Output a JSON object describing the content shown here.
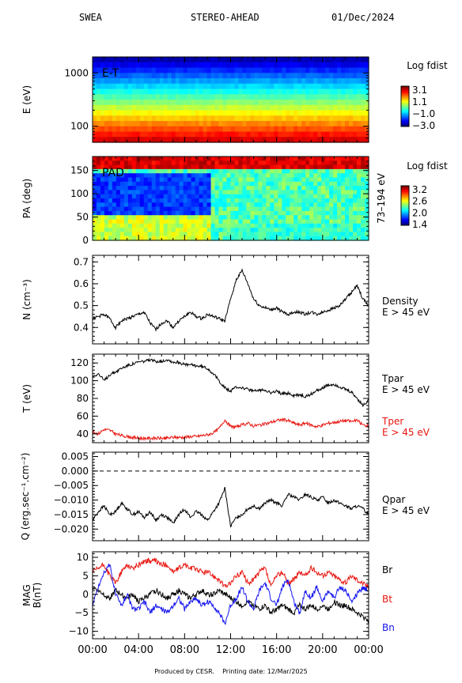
{
  "header": {
    "instrument": "SWEA",
    "spacecraft": "STEREO-AHEAD",
    "date": "01/Dec/2024"
  },
  "footer": {
    "produced_by": "Produced by CESR.",
    "printing_date": "Printing date: 12/Mar/2025"
  },
  "colors": {
    "red": "#e8150f",
    "blue": "#1515f0",
    "black": "#000000"
  },
  "x_axis": {
    "tick_labels": [
      "00:00",
      "04:00",
      "08:00",
      "12:00",
      "16:00",
      "20:00",
      "00:00"
    ],
    "range_hours": [
      0,
      24
    ]
  },
  "chart_data": [
    {
      "type": "heatmap",
      "id": "energy",
      "inner_label": "E-T",
      "ylabel": "E (eV)",
      "y_scale": "log",
      "ylim": [
        50,
        2000
      ],
      "ytick_labels": [
        "1000",
        "100"
      ],
      "ytick_values": [
        1000,
        100
      ],
      "colorbar": {
        "title": "Log fdist",
        "tick_labels": [
          "3.1",
          "1.1",
          "−1.0",
          "−3.0"
        ],
        "range": [
          -3.0,
          3.1
        ]
      }
    },
    {
      "type": "heatmap",
      "id": "pad",
      "inner_label": "PAD",
      "ylabel": "PA (deg)",
      "right_label": "73–194 eV",
      "ylim": [
        0,
        180
      ],
      "ytick_labels": [
        "150",
        "100",
        "50",
        "0"
      ],
      "ytick_values": [
        150,
        100,
        50,
        0
      ],
      "colorbar": {
        "title": "Log fdist",
        "tick_labels": [
          "3.2",
          "2.6",
          "2.0",
          "1.4"
        ],
        "range": [
          1.4,
          3.2
        ]
      }
    },
    {
      "type": "line",
      "id": "density",
      "ylabel": "N (cm⁻³)",
      "ylim": [
        0.325,
        0.73
      ],
      "ytick_labels": [
        "0.7",
        "0.6",
        "0.5",
        "0.4"
      ],
      "ytick_values": [
        0.7,
        0.6,
        0.5,
        0.4
      ],
      "series": [
        {
          "name": "Density",
          "name2": "E > 45 eV",
          "color": "#000000",
          "x": [
            0,
            0.5,
            1,
            1.5,
            2,
            2.5,
            3,
            3.5,
            4,
            4.5,
            5,
            5.5,
            6,
            6.5,
            7,
            7.5,
            8,
            8.5,
            9,
            9.5,
            10,
            10.5,
            11,
            11.5,
            12,
            12.5,
            13,
            13.5,
            14,
            14.5,
            15,
            15.5,
            16,
            16.5,
            17,
            17.5,
            18,
            18.5,
            19,
            19.5,
            20,
            20.5,
            21,
            21.5,
            22,
            22.5,
            23,
            23.5,
            24
          ],
          "y": [
            0.44,
            0.45,
            0.46,
            0.44,
            0.4,
            0.43,
            0.44,
            0.45,
            0.46,
            0.47,
            0.42,
            0.39,
            0.42,
            0.43,
            0.4,
            0.43,
            0.45,
            0.47,
            0.45,
            0.44,
            0.46,
            0.45,
            0.44,
            0.43,
            0.53,
            0.62,
            0.66,
            0.6,
            0.53,
            0.5,
            0.49,
            0.48,
            0.49,
            0.47,
            0.46,
            0.47,
            0.47,
            0.46,
            0.47,
            0.46,
            0.47,
            0.48,
            0.49,
            0.5,
            0.53,
            0.56,
            0.59,
            0.53,
            0.5
          ]
        }
      ]
    },
    {
      "type": "line",
      "id": "temperature",
      "ylabel": "T (eV)",
      "ylim": [
        30,
        130
      ],
      "ytick_labels": [
        "120",
        "100",
        "80",
        "60",
        "40"
      ],
      "ytick_values": [
        120,
        100,
        80,
        60,
        40
      ],
      "series": [
        {
          "name": "Tpar",
          "name2": "E > 45 eV",
          "color": "#000000",
          "x": [
            0,
            0.5,
            1,
            1.5,
            2,
            2.5,
            3,
            3.5,
            4,
            4.5,
            5,
            5.5,
            6,
            6.5,
            7,
            7.5,
            8,
            8.5,
            9,
            9.5,
            10,
            10.5,
            11,
            11.5,
            12,
            12.5,
            13,
            13.5,
            14,
            14.5,
            15,
            15.5,
            16,
            16.5,
            17,
            17.5,
            18,
            18.5,
            19,
            19.5,
            20,
            20.5,
            21,
            21.5,
            22,
            22.5,
            23,
            23.5,
            24
          ],
          "y": [
            105,
            108,
            100,
            107,
            110,
            114,
            117,
            119,
            121,
            122,
            123,
            122,
            122,
            124,
            121,
            121,
            118,
            118,
            117,
            116,
            114,
            108,
            100,
            92,
            88,
            93,
            92,
            90,
            88,
            89,
            90,
            86,
            88,
            85,
            86,
            83,
            84,
            82,
            85,
            89,
            92,
            95,
            96,
            93,
            90,
            87,
            80,
            72,
            78
          ]
        },
        {
          "name": "Tper",
          "name2": "E > 45 eV",
          "color": "#e8150f",
          "x": [
            0,
            0.5,
            1,
            1.5,
            2,
            2.5,
            3,
            3.5,
            4,
            4.5,
            5,
            5.5,
            6,
            6.5,
            7,
            7.5,
            8,
            8.5,
            9,
            9.5,
            10,
            10.5,
            11,
            11.5,
            12,
            12.5,
            13,
            13.5,
            14,
            14.5,
            15,
            15.5,
            16,
            16.5,
            17,
            17.5,
            18,
            18.5,
            19,
            19.5,
            20,
            20.5,
            21,
            21.5,
            22,
            22.5,
            23,
            23.5,
            24
          ],
          "y": [
            42,
            40,
            45,
            44,
            40,
            38,
            37,
            36,
            35,
            35,
            35,
            35,
            35,
            35,
            36,
            36,
            36,
            37,
            37,
            38,
            39,
            41,
            46,
            56,
            48,
            48,
            50,
            52,
            49,
            50,
            51,
            53,
            55,
            56,
            55,
            52,
            50,
            52,
            50,
            48,
            50,
            52,
            53,
            54,
            55,
            54,
            55,
            50,
            49
          ]
        }
      ]
    },
    {
      "type": "line",
      "id": "heatflux",
      "ylabel": "Q (erg.sec⁻¹.cm⁻²)",
      "ylim": [
        -0.024,
        0.0065
      ],
      "ytick_labels": [
        "0.005",
        "0.000",
        "−0.005",
        "−0.010",
        "−0.015",
        "−0.020"
      ],
      "ytick_values": [
        0.005,
        0.0,
        -0.005,
        -0.01,
        -0.015,
        -0.02
      ],
      "zero_line": true,
      "series": [
        {
          "name": "Qpar",
          "name2": "E > 45 eV",
          "color": "#000000",
          "x": [
            0,
            0.5,
            1,
            1.5,
            2,
            2.5,
            3,
            3.5,
            4,
            4.5,
            5,
            5.5,
            6,
            6.5,
            7,
            7.5,
            8,
            8.5,
            9,
            9.5,
            10,
            10.5,
            11,
            11.5,
            12,
            12.5,
            13,
            13.5,
            14,
            14.5,
            15,
            15.5,
            16,
            16.5,
            17,
            17.5,
            18,
            18.5,
            19,
            19.5,
            20,
            20.5,
            21,
            21.5,
            22,
            22.5,
            23,
            23.5,
            24
          ],
          "y": [
            -0.017,
            -0.014,
            -0.012,
            -0.015,
            -0.014,
            -0.011,
            -0.013,
            -0.015,
            -0.014,
            -0.016,
            -0.014,
            -0.017,
            -0.015,
            -0.016,
            -0.018,
            -0.015,
            -0.013,
            -0.016,
            -0.014,
            -0.015,
            -0.017,
            -0.014,
            -0.011,
            -0.006,
            -0.019,
            -0.016,
            -0.015,
            -0.013,
            -0.012,
            -0.013,
            -0.011,
            -0.01,
            -0.011,
            -0.012,
            -0.008,
            -0.009,
            -0.01,
            -0.008,
            -0.009,
            -0.01,
            -0.009,
            -0.011,
            -0.01,
            -0.011,
            -0.012,
            -0.013,
            -0.012,
            -0.013,
            -0.015
          ]
        }
      ]
    },
    {
      "type": "line",
      "id": "mag",
      "ylabel": "MAG",
      "ylabel2": "B(nT)",
      "ylim": [
        -12,
        11.5
      ],
      "ytick_labels": [
        "10",
        "5",
        "0",
        "−5",
        "−10"
      ],
      "ytick_values": [
        10,
        5,
        0,
        -5,
        -10
      ],
      "series": [
        {
          "name": "Br",
          "color": "#000000",
          "x": [
            0,
            0.5,
            1,
            1.5,
            2,
            2.5,
            3,
            3.5,
            4,
            4.5,
            5,
            5.5,
            6,
            6.5,
            7,
            7.5,
            8,
            8.5,
            9,
            9.5,
            10,
            10.5,
            11,
            11.5,
            12,
            12.5,
            13,
            13.5,
            14,
            14.5,
            15,
            15.5,
            16,
            16.5,
            17,
            17.5,
            18,
            18.5,
            19,
            19.5,
            20,
            20.5,
            21,
            21.5,
            22,
            22.5,
            23,
            23.5,
            24
          ],
          "y": [
            2,
            1,
            0,
            -1,
            1,
            0,
            -1,
            0,
            -2,
            -1,
            0,
            1,
            0,
            -1,
            0,
            1,
            0,
            -1,
            0,
            1,
            0,
            0,
            1,
            0,
            -1,
            -2,
            -3,
            -2,
            -3,
            -4,
            -3,
            -5,
            -4,
            -3,
            -4,
            -5,
            -3,
            -4,
            -3,
            -4,
            -3,
            -4,
            -2,
            -3,
            -3,
            -4,
            -5,
            -6,
            -7
          ]
        },
        {
          "name": "Bt",
          "color": "#e8150f",
          "x": [
            0,
            0.5,
            1,
            1.5,
            2,
            2.5,
            3,
            3.5,
            4,
            4.5,
            5,
            5.5,
            6,
            6.5,
            7,
            7.5,
            8,
            8.5,
            9,
            9.5,
            10,
            10.5,
            11,
            11.5,
            12,
            12.5,
            13,
            13.5,
            14,
            14.5,
            15,
            15.5,
            16,
            16.5,
            17,
            17.5,
            18,
            18.5,
            19,
            19.5,
            20,
            20.5,
            21,
            21.5,
            22,
            22.5,
            23,
            23.5,
            24
          ],
          "y": [
            6,
            7,
            8,
            5,
            3,
            6,
            8,
            7,
            8,
            9,
            9,
            9,
            8,
            8,
            6,
            7,
            8,
            7,
            7,
            6,
            6,
            5,
            4,
            2,
            3,
            5,
            6,
            3,
            4,
            6,
            7,
            2,
            5,
            6,
            3,
            4,
            6,
            5,
            7,
            6,
            5,
            6,
            5,
            4,
            3,
            5,
            4,
            3,
            2
          ]
        },
        {
          "name": "Bn",
          "color": "#1515f0",
          "x": [
            0,
            0.5,
            1,
            1.5,
            2,
            2.5,
            3,
            3.5,
            4,
            4.5,
            5,
            5.5,
            6,
            6.5,
            7,
            7.5,
            8,
            8.5,
            9,
            9.5,
            10,
            10.5,
            11,
            11.5,
            12,
            12.5,
            13,
            13.5,
            14,
            14.5,
            15,
            15.5,
            16,
            16.5,
            17,
            17.5,
            18,
            18.5,
            19,
            19.5,
            20,
            20.5,
            21,
            21.5,
            22,
            22.5,
            23,
            23.5,
            24
          ],
          "y": [
            -3,
            2,
            6,
            8,
            0,
            -3,
            0,
            -4,
            -4,
            -2,
            -5,
            -3,
            -4,
            -5,
            -3,
            -1,
            -4,
            -2,
            -1,
            -3,
            -2,
            -3,
            -5,
            -8,
            -3,
            -1,
            2,
            -2,
            -4,
            1,
            3,
            -1,
            -3,
            2,
            4,
            -2,
            -5,
            1,
            -1,
            2,
            -2,
            1,
            -1,
            2,
            1,
            -2,
            0,
            2,
            1
          ]
        }
      ]
    }
  ]
}
